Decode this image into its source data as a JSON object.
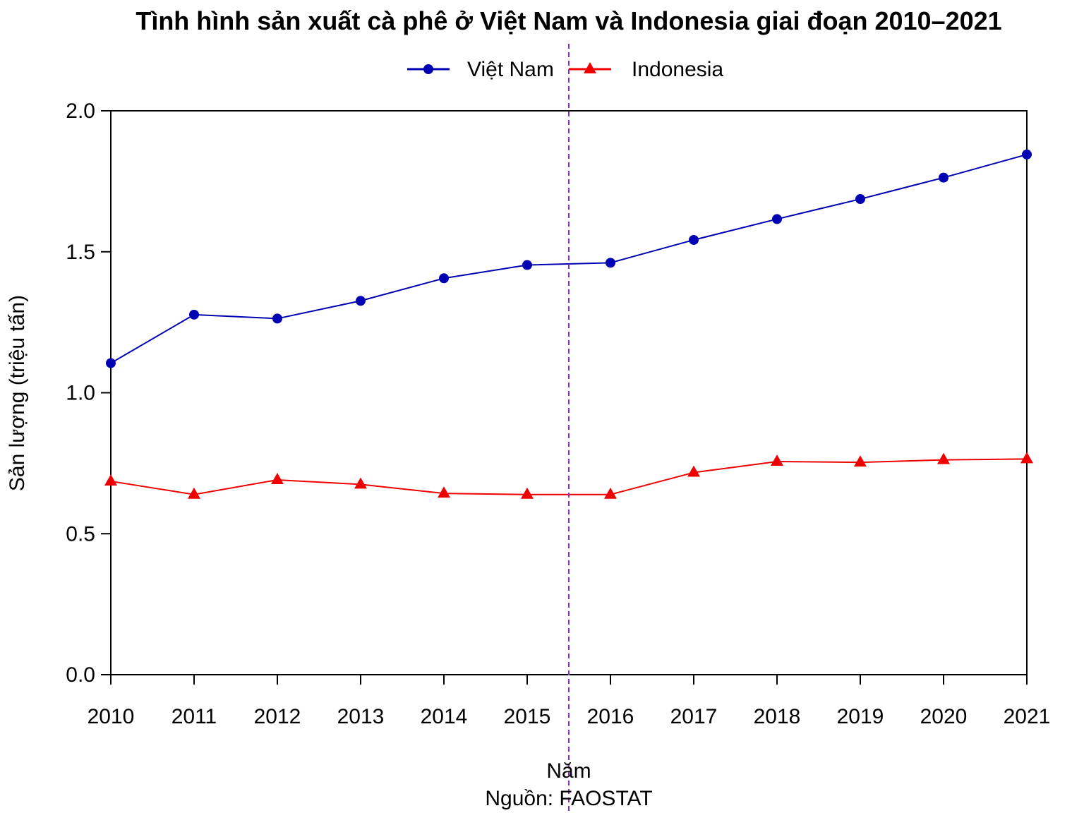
{
  "chart_data": {
    "type": "line",
    "title": "Tình hình sản xuất cà phê ở Việt Nam và Indonesia giai đoạn 2010–2021",
    "xlabel": "Năm",
    "ylabel": "Sản lượng (triệu tấn)",
    "caption": "Nguồn: FAOSTAT",
    "x": [
      2010,
      2011,
      2012,
      2013,
      2014,
      2015,
      2016,
      2017,
      2018,
      2019,
      2020,
      2021
    ],
    "x_tick_labels": [
      "2010",
      "2011",
      "2012",
      "2013",
      "2014",
      "2015",
      "2016",
      "2017",
      "2018",
      "2019",
      "2020",
      "2021"
    ],
    "y_tick_labels": [
      "0.0",
      "0.5",
      "1.0",
      "1.5",
      "2.0"
    ],
    "y_ticks": [
      0,
      0.5,
      1.0,
      1.5,
      2.0
    ],
    "xlim": [
      2010,
      2021
    ],
    "ylim": [
      0,
      2.0
    ],
    "grid": false,
    "legend_position": "top-center",
    "reference_line": {
      "x": 2015.5,
      "color": "#8a2be2",
      "style": "dashed"
    },
    "series": [
      {
        "name": "Việt Nam",
        "color": "#0000b3",
        "marker": "circle",
        "values": [
          1.105,
          1.277,
          1.263,
          1.326,
          1.406,
          1.453,
          1.461,
          1.542,
          1.616,
          1.687,
          1.763,
          1.845
        ]
      },
      {
        "name": "Indonesia",
        "color": "#ee0000",
        "marker": "triangle",
        "values": [
          0.686,
          0.639,
          0.691,
          0.675,
          0.643,
          0.639,
          0.639,
          0.717,
          0.756,
          0.753,
          0.762,
          0.765
        ]
      }
    ]
  }
}
